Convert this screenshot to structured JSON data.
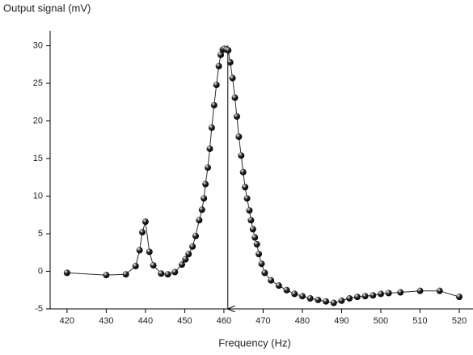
{
  "chart_data": {
    "type": "line",
    "ylabel": "Output signal (mV)",
    "xlabel": "Frequency (Hz)",
    "xlim": [
      415.7,
      523.5
    ],
    "ylim": [
      -5,
      32
    ],
    "xticks": [
      420,
      430,
      440,
      450,
      460,
      470,
      480,
      490,
      500,
      510,
      520
    ],
    "yticks": [
      -5,
      0,
      5,
      10,
      15,
      20,
      25,
      30
    ],
    "vline_x": 461,
    "series": [
      {
        "color": "#2a2a2a",
        "x": [
          420,
          430,
          435,
          437.5,
          438.5,
          439.2,
          440,
          441,
          442,
          444,
          445.7,
          447.5,
          449.3,
          450.2,
          451,
          452,
          452.8,
          453.7,
          454.4,
          454.9,
          455.3,
          455.9,
          456.4,
          456.9,
          457.5,
          458.1,
          458.7,
          459.2,
          459.7,
          460.1,
          460.6,
          461.1,
          461.6,
          462.2,
          462.8,
          463.3,
          463.8,
          464.4,
          464.9,
          465.4,
          465.9,
          466.5,
          466.9,
          467.4,
          467.9,
          468.4,
          468.9,
          469.6,
          470.4,
          472,
          474,
          476,
          478,
          480,
          482,
          484,
          486,
          488,
          490,
          492,
          494,
          496,
          498,
          500,
          502,
          505,
          510,
          515,
          520
        ],
        "values": [
          -0.2,
          -0.5,
          -0.4,
          0.7,
          2.8,
          5.2,
          6.6,
          2.6,
          0.8,
          -0.3,
          -0.4,
          -0.1,
          0.9,
          1.6,
          2.3,
          3.3,
          4.7,
          6.8,
          8.2,
          9.7,
          11.6,
          13.8,
          16.3,
          19.1,
          22.1,
          24.8,
          27.3,
          28.8,
          29.5,
          29.6,
          29.5,
          29.4,
          27.8,
          25.7,
          23.1,
          20.6,
          17.9,
          15.4,
          13.2,
          11.2,
          9.7,
          8.1,
          6.8,
          5.6,
          4.5,
          3.6,
          2.3,
          1.0,
          -0.2,
          -1.2,
          -1.9,
          -2.5,
          -3.0,
          -3.3,
          -3.6,
          -3.8,
          -4.0,
          -4.2,
          -3.9,
          -3.6,
          -3.4,
          -3.3,
          -3.2,
          -3.0,
          -2.9,
          -2.8,
          -2.6,
          -2.6,
          -3.4
        ]
      }
    ]
  }
}
